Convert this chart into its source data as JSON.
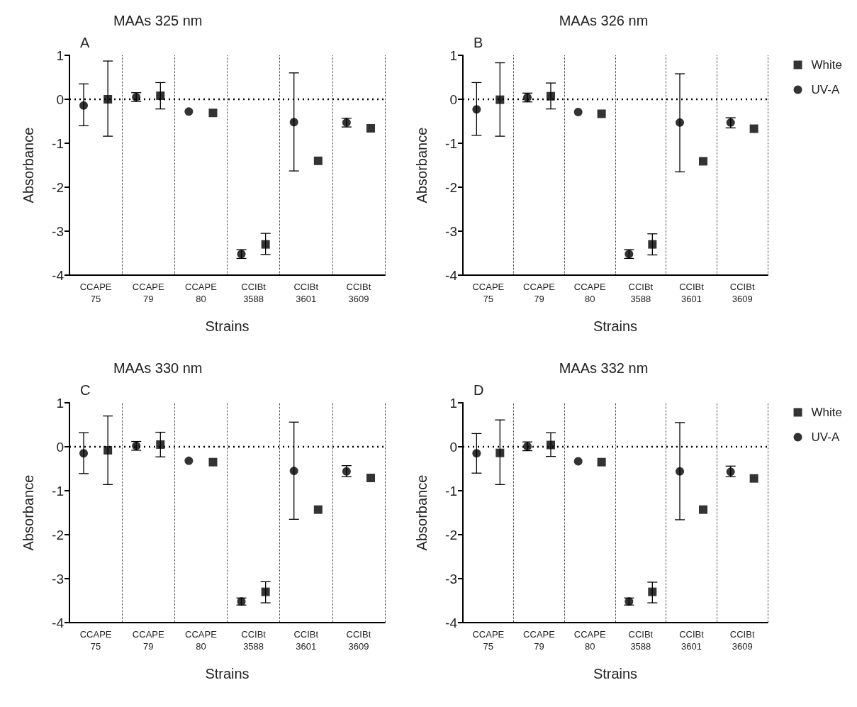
{
  "chart_data": [
    {
      "type": "scatter",
      "title": "MAAs 325 nm",
      "xlabel": "Strains",
      "ylabel": "Absorbance",
      "annotations": [
        "A"
      ],
      "categories": [
        "CCAPE\n75",
        "CCAPE\n79",
        "CCAPE\n80",
        "CCIBt\n3588",
        "CCIBt\n3601",
        "CCIBt\n3609"
      ],
      "ylim": [
        -4,
        1
      ],
      "yticks": [
        -4,
        -3,
        -2,
        -1,
        0,
        1
      ],
      "grid": "x",
      "legend": false,
      "ref_lines": [
        {
          "axis": "y",
          "value": 0,
          "line_style": "dotted"
        }
      ],
      "series": [
        {
          "marker": "circle",
          "color": "#000000",
          "values": [
            -0.14,
            0.05,
            -0.28,
            -3.52,
            -0.52,
            -0.53
          ],
          "errors": [
            [
              -0.6,
              0.35
            ],
            0.1,
            null,
            0.1,
            [
              -1.63,
              0.6
            ],
            0.1
          ]
        },
        {
          "marker": "square",
          "color": "#000000",
          "values": [
            0.0,
            0.08,
            -0.31,
            -3.3,
            -1.4,
            -0.66
          ],
          "errors": [
            [
              -0.84,
              0.87
            ],
            [
              -0.22,
              0.38
            ],
            null,
            [
              -3.53,
              -3.05
            ],
            null,
            null
          ]
        }
      ]
    },
    {
      "type": "scatter",
      "title": "MAAs 326 nm",
      "xlabel": "Strains",
      "ylabel": "Absorbance",
      "annotations": [
        "B"
      ],
      "categories": [
        "CCAPE\n75",
        "CCAPE\n79",
        "CCAPE\n80",
        "CCIBt\n3588",
        "CCIBt\n3601",
        "CCIBt\n3609"
      ],
      "ylim": [
        -4,
        1
      ],
      "yticks": [
        -4,
        -3,
        -2,
        -1,
        0,
        1
      ],
      "grid": "x",
      "legend": "right",
      "ref_lines": [
        {
          "axis": "y",
          "value": 0,
          "line_style": "dotted"
        }
      ],
      "series": [
        {
          "name": "White",
          "marker": "square",
          "color": "#000000",
          "values": [
            -0.01,
            0.07,
            -0.33,
            -3.3,
            -1.41,
            -0.67
          ],
          "errors": [
            [
              -0.84,
              0.83
            ],
            [
              -0.22,
              0.37
            ],
            null,
            [
              -3.54,
              -3.06
            ],
            null,
            null
          ]
        },
        {
          "name": "UV-A",
          "marker": "circle",
          "color": "#000000",
          "values": [
            -0.23,
            0.04,
            -0.29,
            -3.52,
            -0.53,
            -0.53
          ],
          "errors": [
            [
              -0.82,
              0.38
            ],
            0.1,
            null,
            0.1,
            [
              -1.65,
              0.58
            ],
            [
              -0.65,
              -0.42
            ]
          ]
        }
      ]
    },
    {
      "type": "scatter",
      "title": "MAAs 330 nm",
      "xlabel": "Strains",
      "ylabel": "Absorbance",
      "annotations": [
        "C"
      ],
      "categories": [
        "CCAPE\n75",
        "CCAPE\n79",
        "CCAPE\n80",
        "CCIBt\n3588",
        "CCIBt\n3601",
        "CCIBt\n3609"
      ],
      "ylim": [
        -4,
        1
      ],
      "yticks": [
        -4,
        -3,
        -2,
        -1,
        0,
        1
      ],
      "grid": "x",
      "legend": false,
      "ref_lines": [
        {
          "axis": "y",
          "value": 0,
          "line_style": "dotted"
        }
      ],
      "series": [
        {
          "marker": "circle",
          "color": "#000000",
          "values": [
            -0.15,
            0.02,
            -0.32,
            -3.52,
            -0.55,
            -0.56
          ],
          "errors": [
            [
              -0.61,
              0.32
            ],
            0.1,
            null,
            0.08,
            [
              -1.65,
              0.56
            ],
            [
              -0.68,
              -0.43
            ]
          ]
        },
        {
          "marker": "square",
          "color": "#000000",
          "values": [
            -0.08,
            0.05,
            -0.35,
            -3.3,
            -1.43,
            -0.71
          ],
          "errors": [
            [
              -0.86,
              0.7
            ],
            [
              -0.23,
              0.33
            ],
            null,
            [
              -3.55,
              -3.07
            ],
            null,
            null
          ]
        }
      ]
    },
    {
      "type": "scatter",
      "title": "MAAs 332 nm",
      "xlabel": "Strains",
      "ylabel": "Absorbance",
      "annotations": [
        "D"
      ],
      "categories": [
        "CCAPE\n75",
        "CCAPE\n79",
        "CCAPE\n80",
        "CCIBt\n3588",
        "CCIBt\n3601",
        "CCIBt\n3609"
      ],
      "ylim": [
        -4,
        1
      ],
      "yticks": [
        -4,
        -3,
        -2,
        -1,
        0,
        1
      ],
      "grid": "x",
      "legend": "right",
      "ref_lines": [
        {
          "axis": "y",
          "value": 0,
          "line_style": "dotted"
        }
      ],
      "series": [
        {
          "name": "White",
          "marker": "square",
          "color": "#000000",
          "values": [
            -0.14,
            0.04,
            -0.35,
            -3.3,
            -1.43,
            -0.72
          ],
          "errors": [
            [
              -0.86,
              0.61
            ],
            [
              -0.22,
              0.32
            ],
            null,
            [
              -3.55,
              -3.08
            ],
            null,
            null
          ]
        },
        {
          "name": "UV-A",
          "marker": "circle",
          "color": "#000000",
          "values": [
            -0.15,
            0.01,
            -0.33,
            -3.52,
            -0.56,
            -0.57
          ],
          "errors": [
            [
              -0.6,
              0.3
            ],
            0.1,
            null,
            0.08,
            [
              -1.66,
              0.55
            ],
            [
              -0.68,
              -0.44
            ]
          ]
        }
      ]
    }
  ]
}
